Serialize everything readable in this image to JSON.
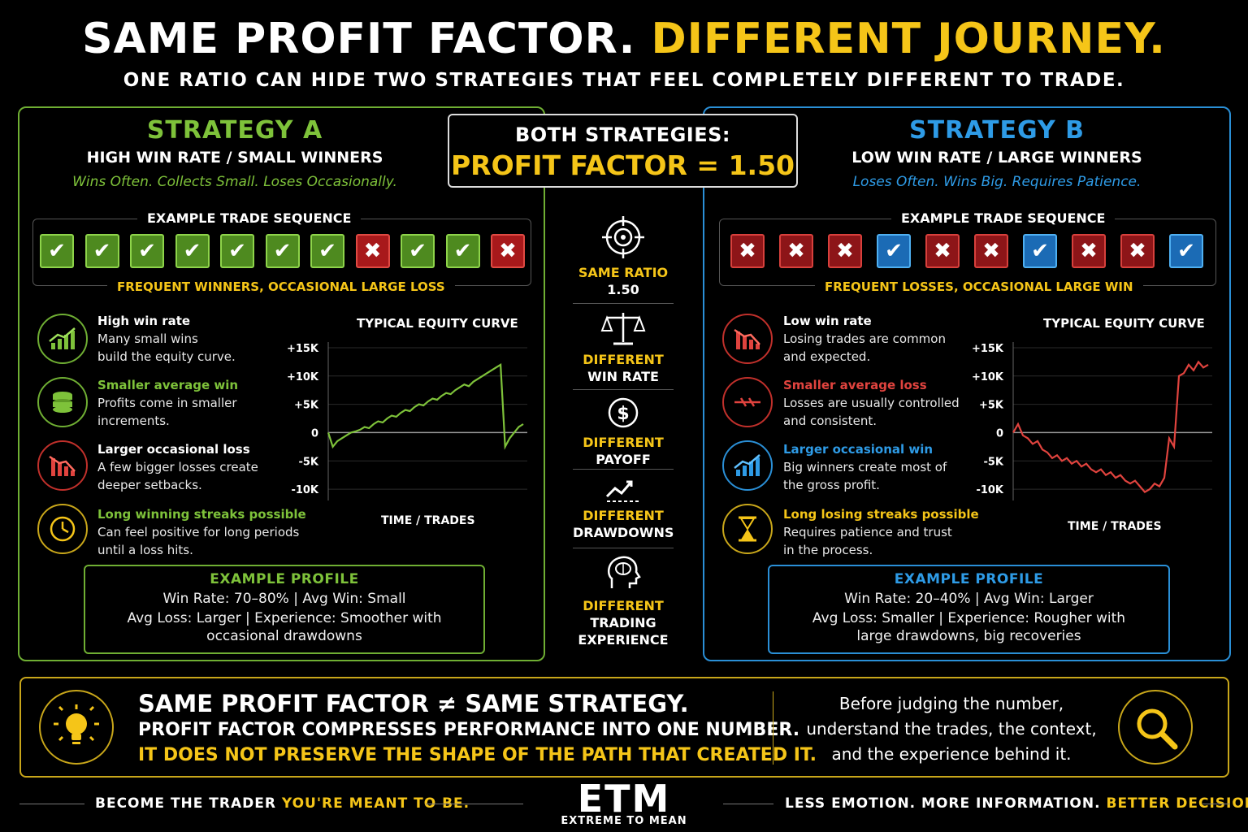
{
  "header": {
    "title_white": "SAME PROFIT FACTOR.",
    "title_yellow": "DIFFERENT JOURNEY.",
    "subtitle": "ONE RATIO CAN HIDE TWO STRATEGIES THAT FEEL COMPLETELY DIFFERENT TO TRADE."
  },
  "center": {
    "both_label": "BOTH STRATEGIES:",
    "pf_label": "PROFIT FACTOR = 1.50",
    "items": [
      {
        "icon": "target-icon",
        "line1": "SAME RATIO",
        "line2": "1.50"
      },
      {
        "icon": "scale-icon",
        "line1": "DIFFERENT",
        "line2": "WIN RATE"
      },
      {
        "icon": "dollar-icon",
        "line1": "DIFFERENT",
        "line2": "PAYOFF"
      },
      {
        "icon": "drawdown-chart-icon",
        "line1": "DIFFERENT",
        "line2": "DRAWDOWNS"
      },
      {
        "icon": "brain-head-icon",
        "line1": "DIFFERENT",
        "line2": "TRADING",
        "line3": "EXPERIENCE"
      }
    ]
  },
  "strategy_a": {
    "title": "STRATEGY A",
    "subtitle": "HIGH WIN RATE / SMALL WINNERS",
    "tagline": "Wins Often. Collects Small. Loses Occasionally.",
    "sequence_label": "EXAMPLE TRADE SEQUENCE",
    "sequence": [
      "win",
      "win",
      "win",
      "win",
      "win",
      "win",
      "win",
      "loss",
      "win",
      "win",
      "loss"
    ],
    "sequence_caption": "FREQUENT WINNERS, OCCASIONAL LARGE LOSS",
    "features": [
      {
        "icon": "rising-bars-icon",
        "head": "High win rate",
        "body": [
          "Many small wins",
          "build the equity curve."
        ],
        "color": "#ffffff"
      },
      {
        "icon": "coin-stack-icon",
        "head": "Smaller average win",
        "body": [
          "Profits come in smaller",
          "increments."
        ],
        "color": "#7ec23a"
      },
      {
        "icon": "falling-bars-icon",
        "head": "Larger occasional loss",
        "body": [
          "A few bigger losses create",
          "deeper setbacks."
        ],
        "color": "#ffffff"
      },
      {
        "icon": "clock-icon",
        "head": "Long winning streaks possible",
        "body": [
          "Can feel positive for long periods",
          "until a loss hits."
        ],
        "color": "#7ec23a"
      }
    ],
    "chart_title": "TYPICAL EQUITY CURVE",
    "chart_xlabel": "TIME / TRADES",
    "profile": {
      "title": "EXAMPLE PROFILE",
      "line1": "Win Rate: 70–80%  |  Avg Win: Small",
      "line2": "Avg Loss: Larger  |  Experience: Smoother with",
      "line3": "occasional drawdowns"
    }
  },
  "strategy_b": {
    "title": "STRATEGY B",
    "subtitle": "LOW WIN RATE / LARGE WINNERS",
    "tagline": "Loses Often. Wins Big. Requires Patience.",
    "sequence_label": "EXAMPLE TRADE SEQUENCE",
    "sequence": [
      "loss",
      "loss",
      "loss",
      "win",
      "loss",
      "loss",
      "win",
      "loss",
      "loss",
      "win"
    ],
    "sequence_caption": "FREQUENT LOSSES, OCCASIONAL LARGE WIN",
    "features": [
      {
        "icon": "falling-bars-icon",
        "head": "Low win rate",
        "body": [
          "Losing trades are common",
          "and expected."
        ],
        "color": "#ffffff"
      },
      {
        "icon": "controlled-loss-icon",
        "head": "Smaller average loss",
        "body": [
          "Losses are usually controlled",
          "and consistent."
        ],
        "color": "#e0433e"
      },
      {
        "icon": "rising-bars-icon",
        "head": "Larger occasional win",
        "body": [
          "Big winners create most of",
          "the gross profit."
        ],
        "color": "#2e9be6"
      },
      {
        "icon": "hourglass-icon",
        "head": "Long losing streaks possible",
        "body": [
          "Requires patience and trust",
          "in the process."
        ],
        "color": "#f5c518"
      }
    ],
    "chart_title": "TYPICAL EQUITY CURVE",
    "chart_xlabel": "TIME / TRADES",
    "profile": {
      "title": "EXAMPLE PROFILE",
      "line1": "Win Rate: 20–40%  |  Avg Win: Larger",
      "line2": "Avg Loss: Smaller  |  Experience: Rougher with",
      "line3": "large drawdowns, big recoveries"
    }
  },
  "chart_data": [
    {
      "type": "line",
      "title": "TYPICAL EQUITY CURVE",
      "xlabel": "TIME / TRADES",
      "ylabel": "",
      "yticks": [
        "+15K",
        "+10K",
        "+5K",
        "0",
        "-5K",
        "-10K"
      ],
      "ylim": [
        -12000,
        16000
      ],
      "series": [
        {
          "color": "#7ec23a",
          "values": [
            0,
            -2500,
            -1500,
            -1000,
            -500,
            0,
            200,
            500,
            1000,
            800,
            1500,
            2000,
            1800,
            2500,
            3000,
            2800,
            3500,
            4000,
            3800,
            4500,
            5000,
            4800,
            5500,
            6000,
            5800,
            6500,
            7000,
            6800,
            7500,
            8000,
            8500,
            8200,
            9000,
            9500,
            10000,
            10500,
            11000,
            11500,
            12000,
            -2500,
            -1000,
            0,
            1000,
            1500
          ]
        }
      ]
    },
    {
      "type": "line",
      "title": "TYPICAL EQUITY CURVE",
      "xlabel": "TIME / TRADES",
      "ylabel": "",
      "yticks": [
        "+15K",
        "+10K",
        "+5K",
        "0",
        "-5K",
        "-10K"
      ],
      "ylim": [
        -12000,
        16000
      ],
      "series": [
        {
          "color": "#e0433e",
          "values": [
            0,
            1500,
            -500,
            -1000,
            -2000,
            -1500,
            -3000,
            -3500,
            -4500,
            -4000,
            -5000,
            -4500,
            -5500,
            -5000,
            -6000,
            -5500,
            -6500,
            -7000,
            -6500,
            -7500,
            -7000,
            -8000,
            -7500,
            -8500,
            -9000,
            -8500,
            -9500,
            -10500,
            -10000,
            -9000,
            -9500,
            -8000,
            -1000,
            -2500,
            10000,
            10500,
            12000,
            11000,
            12500,
            11500,
            12000
          ]
        }
      ]
    }
  ],
  "bottom": {
    "head_left": "SAME PROFIT FACTOR",
    "neq": "≠",
    "head_right": "SAME STRATEGY.",
    "line2": "PROFIT FACTOR COMPRESSES PERFORMANCE INTO ONE NUMBER.",
    "line3": "IT DOES NOT PRESERVE THE SHAPE OF THE PATH THAT CREATED IT.",
    "right_lines": [
      "Before judging the number,",
      "understand the trades, the context,",
      "and the experience behind it."
    ]
  },
  "footer": {
    "left_white": "BECOME THE TRADER ",
    "left_yellow": "YOU'RE MEANT TO BE.",
    "logo": "ETM",
    "logo_sub": "EXTREME TO MEAN",
    "right_white": "LESS EMOTION. MORE INFORMATION. ",
    "right_yellow": "BETTER DECISIONS."
  }
}
